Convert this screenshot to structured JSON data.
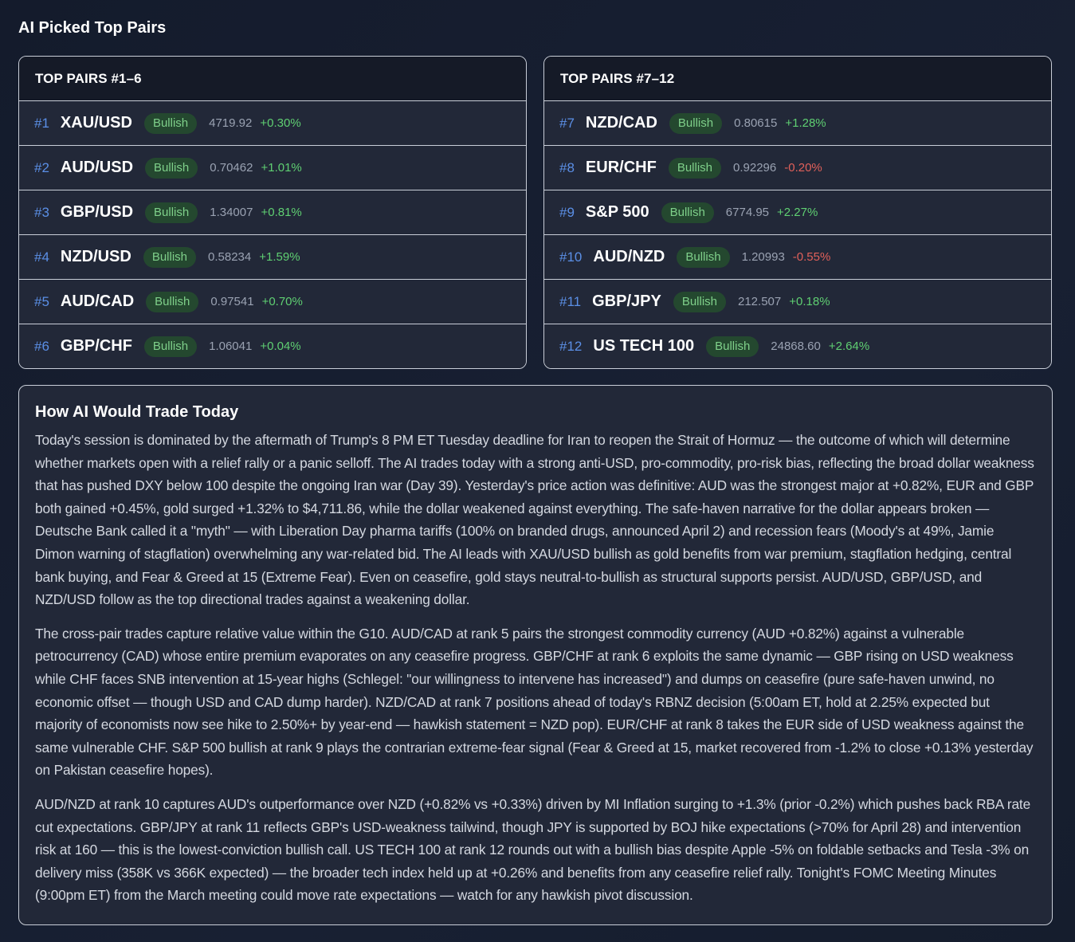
{
  "page": {
    "title": "AI Picked Top Pairs"
  },
  "colors": {
    "rank": "#5b8fe6",
    "badge_bg": "#24482f",
    "badge_text": "#7fd08a",
    "positive": "#5fcf72",
    "negative": "#e0605a"
  },
  "left_card": {
    "title": "TOP PAIRS #1–6",
    "rows": [
      {
        "rank": "#1",
        "symbol": "XAU/USD",
        "bias": "Bullish",
        "price": "4719.92",
        "change": "+0.30%",
        "direction": "pos"
      },
      {
        "rank": "#2",
        "symbol": "AUD/USD",
        "bias": "Bullish",
        "price": "0.70462",
        "change": "+1.01%",
        "direction": "pos"
      },
      {
        "rank": "#3",
        "symbol": "GBP/USD",
        "bias": "Bullish",
        "price": "1.34007",
        "change": "+0.81%",
        "direction": "pos"
      },
      {
        "rank": "#4",
        "symbol": "NZD/USD",
        "bias": "Bullish",
        "price": "0.58234",
        "change": "+1.59%",
        "direction": "pos"
      },
      {
        "rank": "#5",
        "symbol": "AUD/CAD",
        "bias": "Bullish",
        "price": "0.97541",
        "change": "+0.70%",
        "direction": "pos"
      },
      {
        "rank": "#6",
        "symbol": "GBP/CHF",
        "bias": "Bullish",
        "price": "1.06041",
        "change": "+0.04%",
        "direction": "pos"
      }
    ]
  },
  "right_card": {
    "title": "TOP PAIRS #7–12",
    "rows": [
      {
        "rank": "#7",
        "symbol": "NZD/CAD",
        "bias": "Bullish",
        "price": "0.80615",
        "change": "+1.28%",
        "direction": "pos"
      },
      {
        "rank": "#8",
        "symbol": "EUR/CHF",
        "bias": "Bullish",
        "price": "0.92296",
        "change": "-0.20%",
        "direction": "neg"
      },
      {
        "rank": "#9",
        "symbol": "S&P 500",
        "bias": "Bullish",
        "price": "6774.95",
        "change": "+2.27%",
        "direction": "pos"
      },
      {
        "rank": "#10",
        "symbol": "AUD/NZD",
        "bias": "Bullish",
        "price": "1.20993",
        "change": "-0.55%",
        "direction": "neg"
      },
      {
        "rank": "#11",
        "symbol": "GBP/JPY",
        "bias": "Bullish",
        "price": "212.507",
        "change": "+0.18%",
        "direction": "pos"
      },
      {
        "rank": "#12",
        "symbol": "US TECH 100",
        "bias": "Bullish",
        "price": "24868.60",
        "change": "+2.64%",
        "direction": "pos"
      }
    ]
  },
  "analysis": {
    "title": "How AI Would Trade Today",
    "paragraphs": [
      "Today's session is dominated by the aftermath of Trump's 8 PM ET Tuesday deadline for Iran to reopen the Strait of Hormuz — the outcome of which will determine whether markets open with a relief rally or a panic selloff. The AI trades today with a strong anti-USD, pro-commodity, pro-risk bias, reflecting the broad dollar weakness that has pushed DXY below 100 despite the ongoing Iran war (Day 39). Yesterday's price action was definitive: AUD was the strongest major at +0.82%, EUR and GBP both gained +0.45%, gold surged +1.32% to $4,711.86, while the dollar weakened against everything. The safe-haven narrative for the dollar appears broken — Deutsche Bank called it a \"myth\" — with Liberation Day pharma tariffs (100% on branded drugs, announced April 2) and recession fears (Moody's at 49%, Jamie Dimon warning of stagflation) overwhelming any war-related bid. The AI leads with XAU/USD bullish as gold benefits from war premium, stagflation hedging, central bank buying, and Fear & Greed at 15 (Extreme Fear). Even on ceasefire, gold stays neutral-to-bullish as structural supports persist. AUD/USD, GBP/USD, and NZD/USD follow as the top directional trades against a weakening dollar.",
      "The cross-pair trades capture relative value within the G10. AUD/CAD at rank 5 pairs the strongest commodity currency (AUD +0.82%) against a vulnerable petrocurrency (CAD) whose entire premium evaporates on any ceasefire progress. GBP/CHF at rank 6 exploits the same dynamic — GBP rising on USD weakness while CHF faces SNB intervention at 15-year highs (Schlegel: \"our willingness to intervene has increased\") and dumps on ceasefire (pure safe-haven unwind, no economic offset — though USD and CAD dump harder). NZD/CAD at rank 7 positions ahead of today's RBNZ decision (5:00am ET, hold at 2.25% expected but majority of economists now see hike to 2.50%+ by year-end — hawkish statement = NZD pop). EUR/CHF at rank 8 takes the EUR side of USD weakness against the same vulnerable CHF. S&P 500 bullish at rank 9 plays the contrarian extreme-fear signal (Fear & Greed at 15, market recovered from -1.2% to close +0.13% yesterday on Pakistan ceasefire hopes).",
      "AUD/NZD at rank 10 captures AUD's outperformance over NZD (+0.82% vs +0.33%) driven by MI Inflation surging to +1.3% (prior -0.2%) which pushes back RBA rate cut expectations. GBP/JPY at rank 11 reflects GBP's USD-weakness tailwind, though JPY is supported by BOJ hike expectations (>70% for April 28) and intervention risk at 160 — this is the lowest-conviction bullish call. US TECH 100 at rank 12 rounds out with a bullish bias despite Apple -5% on foldable setbacks and Tesla -3% on delivery miss (358K vs 366K expected) — the broader tech index held up at +0.26% and benefits from any ceasefire relief rally. Tonight's FOMC Meeting Minutes (9:00pm ET) from the March meeting could move rate expectations — watch for any hawkish pivot discussion."
    ]
  }
}
